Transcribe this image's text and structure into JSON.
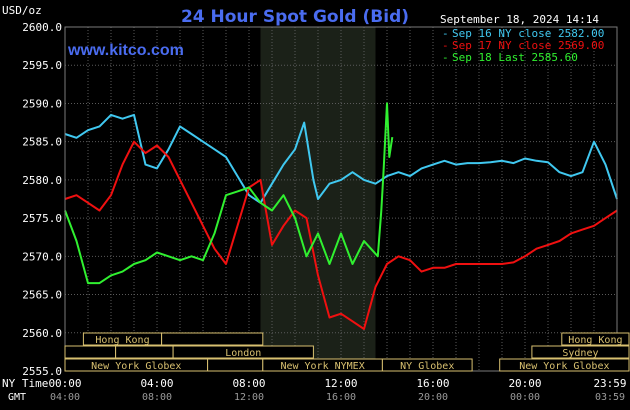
{
  "header": {
    "unit": "USD/oz",
    "title": "24 Hour Spot Gold (Bid)",
    "site": "www.kitco.com",
    "timestamp": "September 18, 2024 14:14"
  },
  "colors": {
    "background": "#000000",
    "plot_background": "#000000",
    "grid": "#5a5a5a",
    "highlight": "#1b2118",
    "title": "#4a6cf0",
    "site": "#4a6cf0",
    "sep16": "#40c8f0",
    "sep17": "#f01010",
    "sep18": "#30f030",
    "market_bar": "#d8c070",
    "text": "#ffffff"
  },
  "chart_data": {
    "type": "line",
    "title": "24 Hour Spot Gold (Bid)",
    "ylabel": "USD/oz",
    "xlim": [
      0,
      24
    ],
    "ylim": [
      2555,
      2600
    ],
    "y_ticks": [
      2555,
      2560,
      2565,
      2570,
      2575,
      2580,
      2585,
      2590,
      2595,
      2600
    ],
    "y_tick_labels": [
      "2555.0",
      "2560.0",
      "2565.0",
      "2570.0",
      "2575.0",
      "2580.0",
      "2585.0",
      "2590.0",
      "2595.0",
      "2600.0"
    ],
    "x_ticks": [
      0,
      4,
      8,
      12,
      16,
      20,
      23.983
    ],
    "x_tick_labels_ny": [
      "00:00",
      "04:00",
      "08:00",
      "12:00",
      "16:00",
      "20:00",
      "23:59"
    ],
    "x_tick_labels_gmt": [
      "04:00",
      "08:00",
      "12:00",
      "16:00",
      "20:00",
      "00:00",
      "03:59"
    ],
    "x_axis_row_label_ny": "NY Time",
    "x_axis_row_label_gmt": "GMT",
    "grid": true,
    "highlight_range": [
      8.5,
      13.5
    ],
    "legend_position": "top-right",
    "series": [
      {
        "name": "Sep 16 NY close 2582.00",
        "color": "#40c8f0",
        "x": [
          0,
          0.5,
          1,
          1.5,
          2,
          2.5,
          3,
          3.5,
          4,
          4.5,
          5,
          5.5,
          6,
          6.5,
          7,
          7.5,
          8,
          8.5,
          9,
          9.5,
          10,
          10.4,
          10.8,
          11,
          11.5,
          12,
          12.5,
          13,
          13.5,
          14,
          14.5,
          15,
          15.5,
          16,
          16.5,
          17,
          17.5,
          18,
          18.5,
          19,
          19.5,
          20,
          20.5,
          21,
          21.5,
          22,
          22.5,
          23,
          23.5,
          24
        ],
        "y": [
          2586,
          2585.5,
          2586.5,
          2587,
          2588.5,
          2588,
          2588.5,
          2582,
          2581.5,
          2584,
          2587,
          2586,
          2585,
          2584,
          2583,
          2580.5,
          2578,
          2577,
          2579.5,
          2582,
          2584,
          2587.5,
          2580,
          2577.5,
          2579.5,
          2580,
          2581,
          2580,
          2579.5,
          2580.5,
          2581,
          2580.5,
          2581.5,
          2582,
          2582.5,
          2582,
          2582.2,
          2582.2,
          2582.3,
          2582.5,
          2582.2,
          2582.8,
          2582.5,
          2582.3,
          2581,
          2580.5,
          2581,
          2585,
          2582,
          2577.5
        ]
      },
      {
        "name": "Sep 17 NY close 2569.00",
        "color": "#f01010",
        "x": [
          0,
          0.5,
          1,
          1.5,
          2,
          2.5,
          3,
          3.5,
          4,
          4.5,
          5,
          5.5,
          6,
          6.5,
          7,
          7.5,
          8,
          8.5,
          9,
          9.5,
          10,
          10.5,
          11,
          11.5,
          12,
          12.5,
          13,
          13.5,
          14,
          14.5,
          15,
          15.5,
          16,
          16.5,
          17,
          17.5,
          18,
          18.5,
          19,
          19.5,
          20,
          20.5,
          21,
          21.5,
          22,
          22.5,
          23,
          23.5,
          24
        ],
        "y": [
          2577.5,
          2578,
          2577,
          2576,
          2578,
          2582,
          2585,
          2583.5,
          2584.5,
          2583,
          2580,
          2577,
          2574,
          2571,
          2569,
          2574,
          2579,
          2580,
          2571.5,
          2574,
          2576,
          2575,
          2567.5,
          2562,
          2562.5,
          2561.5,
          2560.5,
          2566,
          2569,
          2570,
          2569.5,
          2568,
          2568.5,
          2568.5,
          2569,
          2569,
          2569,
          2569,
          2569,
          2569.2,
          2570,
          2571,
          2571.5,
          2572,
          2573,
          2573.5,
          2574,
          2575,
          2576
        ]
      },
      {
        "name": "Sep 18 Last 2585.60",
        "color": "#30f030",
        "x": [
          0,
          0.5,
          1,
          1.5,
          2,
          2.5,
          3,
          3.5,
          4,
          4.5,
          5,
          5.5,
          6,
          6.5,
          7,
          7.5,
          8,
          8.5,
          9,
          9.5,
          10,
          10.5,
          11,
          11.5,
          12,
          12.5,
          13,
          13.3,
          13.6,
          13.75,
          13.85,
          14,
          14.1,
          14.23
        ],
        "y": [
          2576,
          2572,
          2566.5,
          2566.5,
          2567.5,
          2568,
          2569,
          2569.5,
          2570.5,
          2570,
          2569.5,
          2570,
          2569.5,
          2573,
          2578,
          2578.5,
          2579,
          2577,
          2576,
          2578,
          2575,
          2570,
          2573,
          2569,
          2573,
          2569,
          2572,
          2571,
          2570,
          2576,
          2581,
          2590,
          2583,
          2585.6
        ]
      }
    ],
    "market_rows": [
      {
        "bars": [
          {
            "label": "Hong Kong",
            "start": 0.8,
            "end": 4.2
          },
          {
            "label": "",
            "start": 4.2,
            "end": 8.6
          },
          {
            "label": "Hong Kong",
            "start": 21.6,
            "end": 25
          }
        ]
      },
      {
        "bars": [
          {
            "label": "",
            "start": 0,
            "end": 2.2
          },
          {
            "label": "",
            "start": 2.2,
            "end": 4.7
          },
          {
            "label": "London",
            "start": 4.7,
            "end": 10.8
          },
          {
            "label": "Sydney",
            "start": 20.3,
            "end": 24.8
          }
        ]
      },
      {
        "bars": [
          {
            "label": "New York Globex",
            "start": 0,
            "end": 6.2
          },
          {
            "label": "",
            "start": 6.2,
            "end": 8.6
          },
          {
            "label": "New York NYMEX",
            "start": 8.6,
            "end": 13.8
          },
          {
            "label": "NY Globex",
            "start": 13.8,
            "end": 17.7
          },
          {
            "label": "New York Globex",
            "start": 18.9,
            "end": 25
          }
        ]
      }
    ]
  }
}
